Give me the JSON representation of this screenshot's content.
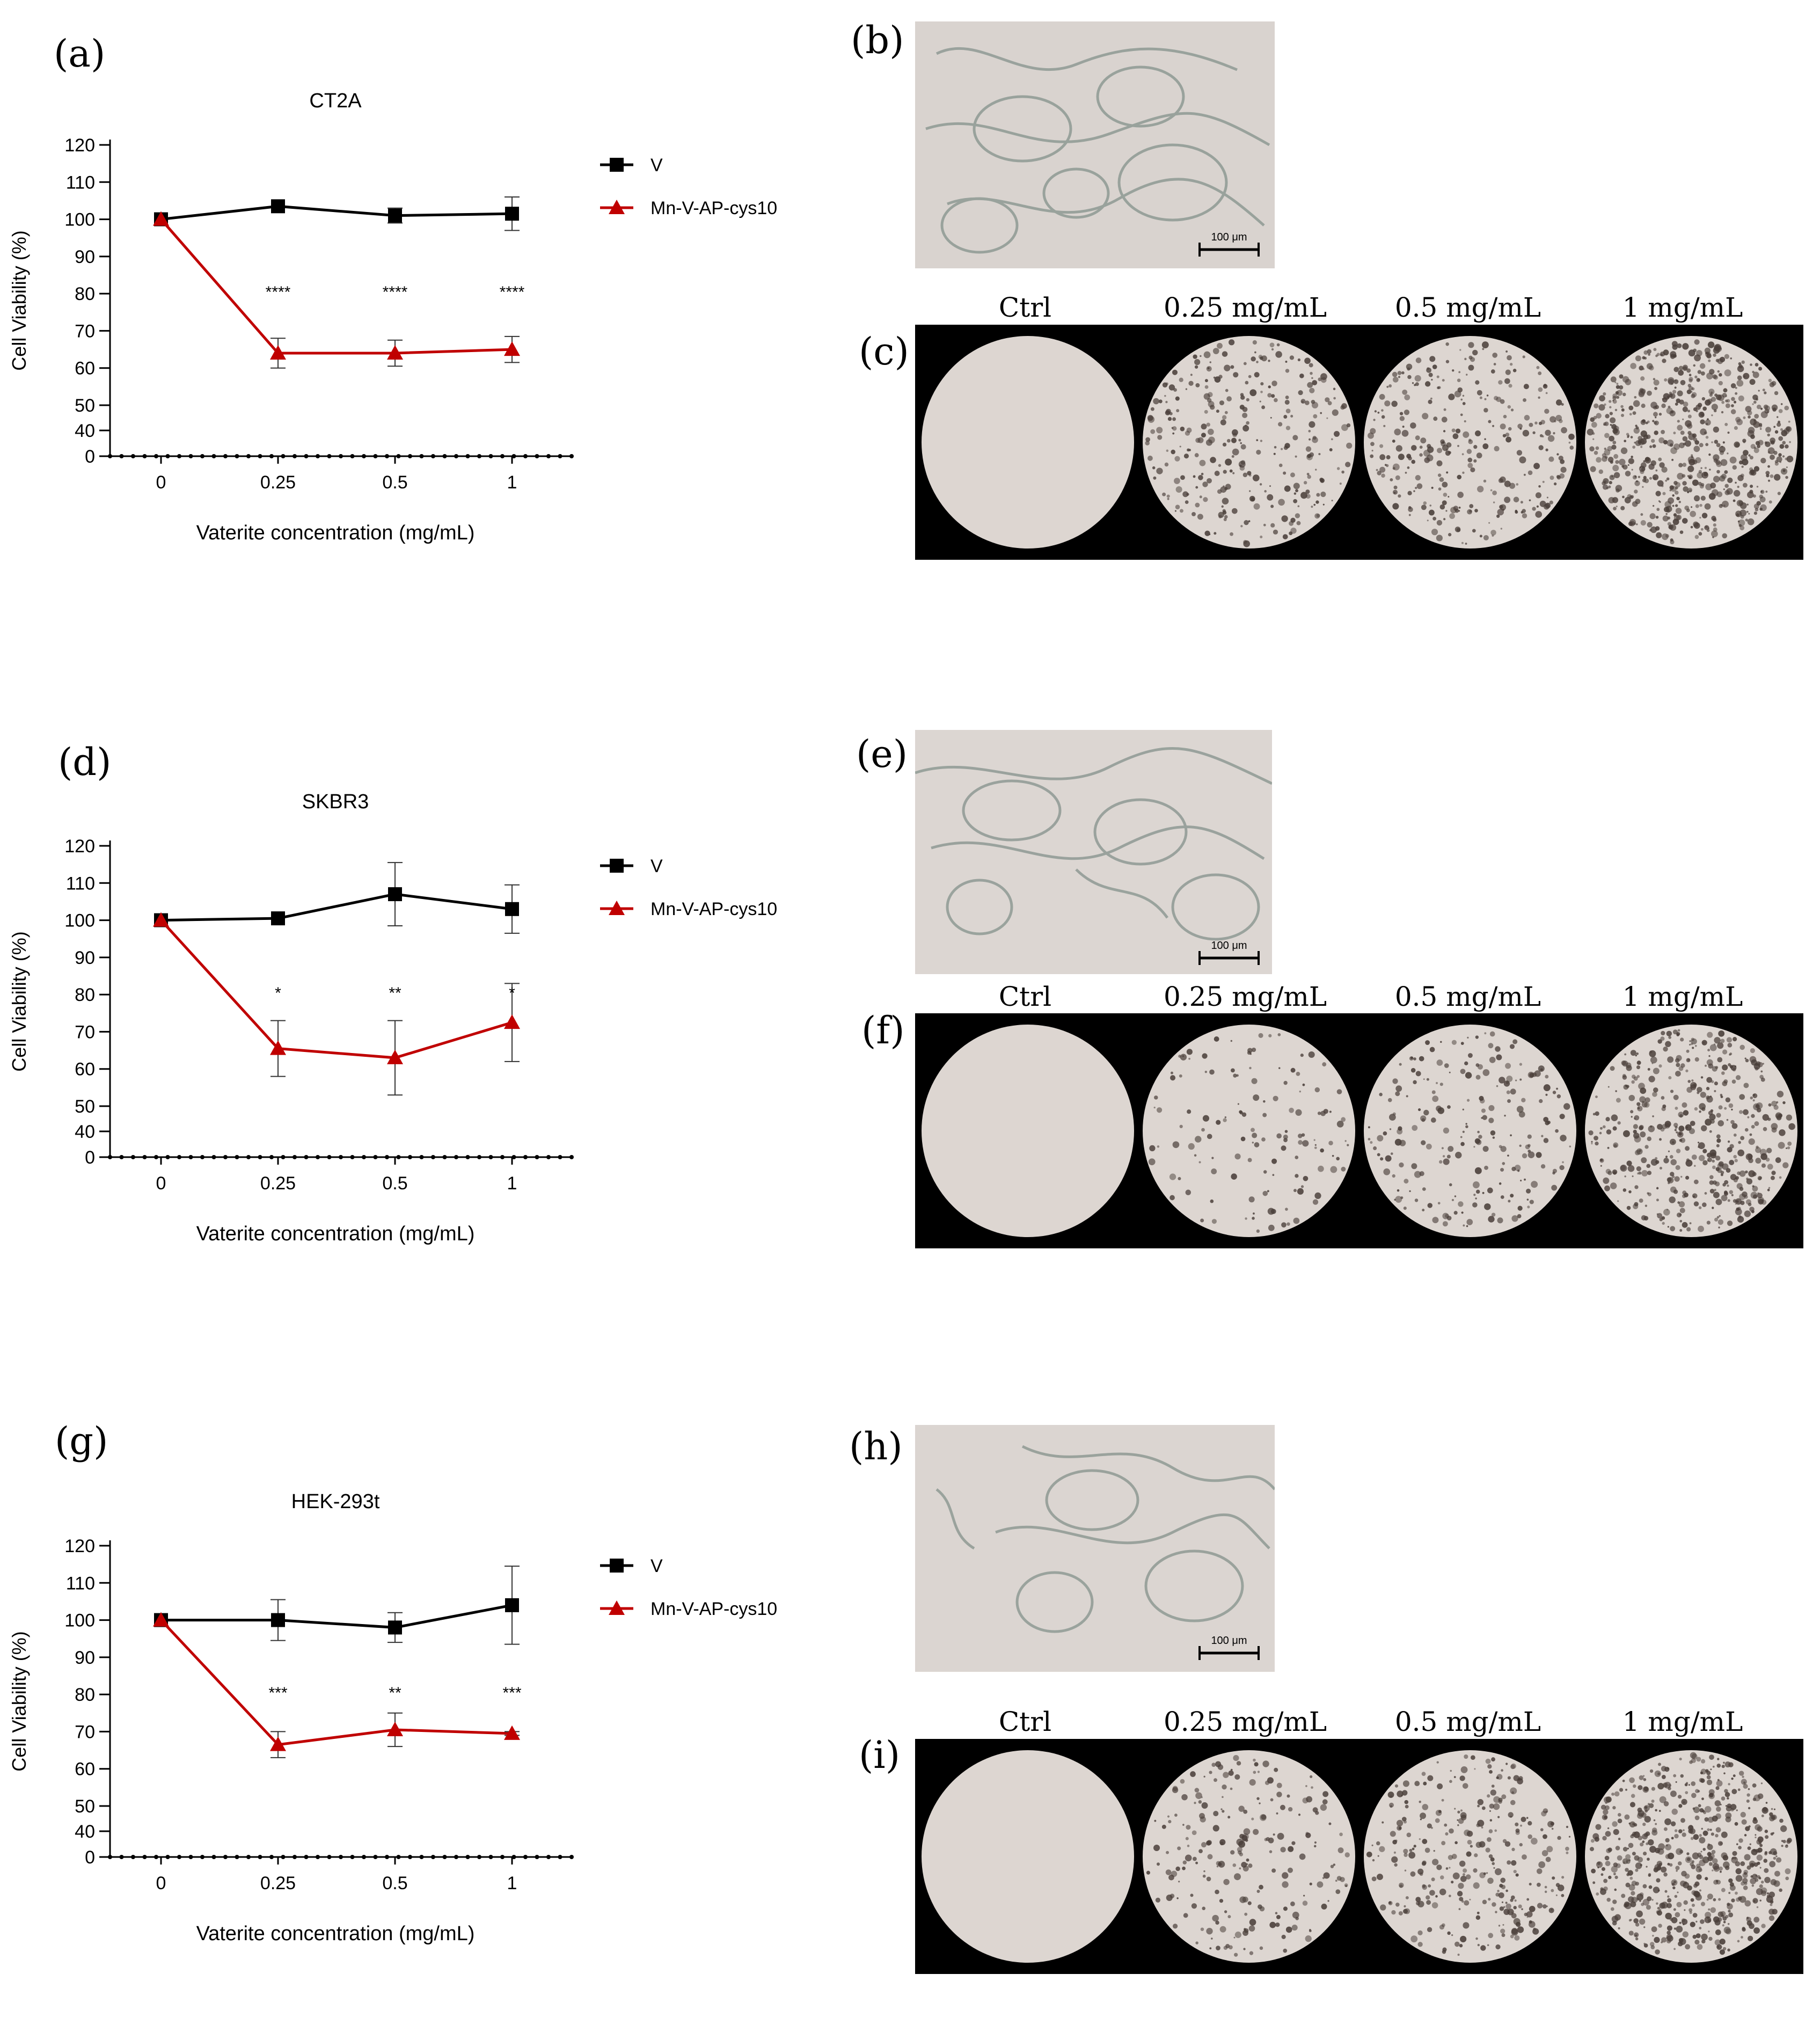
{
  "colors": {
    "v": "#000000",
    "mn": "#c00000"
  },
  "panel_letters": {
    "a": "(a)",
    "b": "(b)",
    "c": "(c)",
    "d": "(d)",
    "e": "(e)",
    "f": "(f)",
    "g": "(g)",
    "h": "(h)",
    "i": "(i)"
  },
  "scale_bar": "100 μm",
  "well_labels": [
    "Ctrl",
    "0.25 mg/mL",
    "0.5 mg/mL",
    "1 mg/mL"
  ],
  "well_images": [
    {
      "row": "c",
      "particle_density": [
        0.0,
        0.35,
        0.35,
        0.75
      ]
    },
    {
      "row": "f",
      "particle_density": [
        0.0,
        0.15,
        0.25,
        0.55
      ]
    },
    {
      "row": "i",
      "particle_density": [
        0.0,
        0.25,
        0.35,
        0.7
      ]
    }
  ],
  "chart_data": [
    {
      "type": "line",
      "title": "CT2A",
      "xlabel": "Vaterite concentration (mg/mL)",
      "ylabel": "Cell Viability (%)",
      "categories": [
        "0",
        "0.25",
        "0.5",
        "1"
      ],
      "yticks": [
        "0",
        "40",
        "50",
        "60",
        "70",
        "80",
        "90",
        "100",
        "110",
        "120"
      ],
      "legend_position": "right",
      "series": [
        {
          "name": "V",
          "marker": "square",
          "values": [
            100,
            103.5,
            101,
            101.5
          ],
          "errors": [
            0,
            0,
            2,
            4.5
          ]
        },
        {
          "name": "Mn-V-AP-cys10",
          "marker": "triangle",
          "values": [
            100,
            64,
            64,
            65
          ],
          "errors": [
            0,
            4,
            3.5,
            3.5
          ]
        }
      ],
      "annotations": [
        "",
        "****",
        "****",
        "****"
      ]
    },
    {
      "type": "line",
      "title": "SKBR3",
      "xlabel": "Vaterite concentration (mg/mL)",
      "ylabel": "Cell Viability (%)",
      "categories": [
        "0",
        "0.25",
        "0.5",
        "1"
      ],
      "yticks": [
        "0",
        "40",
        "50",
        "60",
        "70",
        "80",
        "90",
        "100",
        "110",
        "120"
      ],
      "legend_position": "right",
      "series": [
        {
          "name": "V",
          "marker": "square",
          "values": [
            100,
            100.5,
            107,
            103
          ],
          "errors": [
            0,
            0,
            8.5,
            6.5
          ]
        },
        {
          "name": "Mn-V-AP-cys10",
          "marker": "triangle",
          "values": [
            100,
            65.5,
            63,
            72.5
          ],
          "errors": [
            0,
            7.5,
            10,
            10.5
          ]
        }
      ],
      "annotations": [
        "",
        "*",
        "**",
        "*"
      ]
    },
    {
      "type": "line",
      "title": "HEK-293t",
      "xlabel": "Vaterite concentration (mg/mL)",
      "ylabel": "Cell Viability (%)",
      "categories": [
        "0",
        "0.25",
        "0.5",
        "1"
      ],
      "yticks": [
        "0",
        "40",
        "50",
        "60",
        "70",
        "80",
        "90",
        "100",
        "110",
        "120"
      ],
      "legend_position": "right",
      "series": [
        {
          "name": "V",
          "marker": "square",
          "values": [
            100,
            100,
            98,
            104
          ],
          "errors": [
            0,
            5.5,
            4,
            10.5
          ]
        },
        {
          "name": "Mn-V-AP-cys10",
          "marker": "triangle",
          "values": [
            100,
            66.5,
            70.5,
            69.5
          ],
          "errors": [
            0,
            3.5,
            4.5,
            0.5
          ]
        }
      ],
      "annotations": [
        "",
        "***",
        "**",
        "***"
      ]
    }
  ]
}
